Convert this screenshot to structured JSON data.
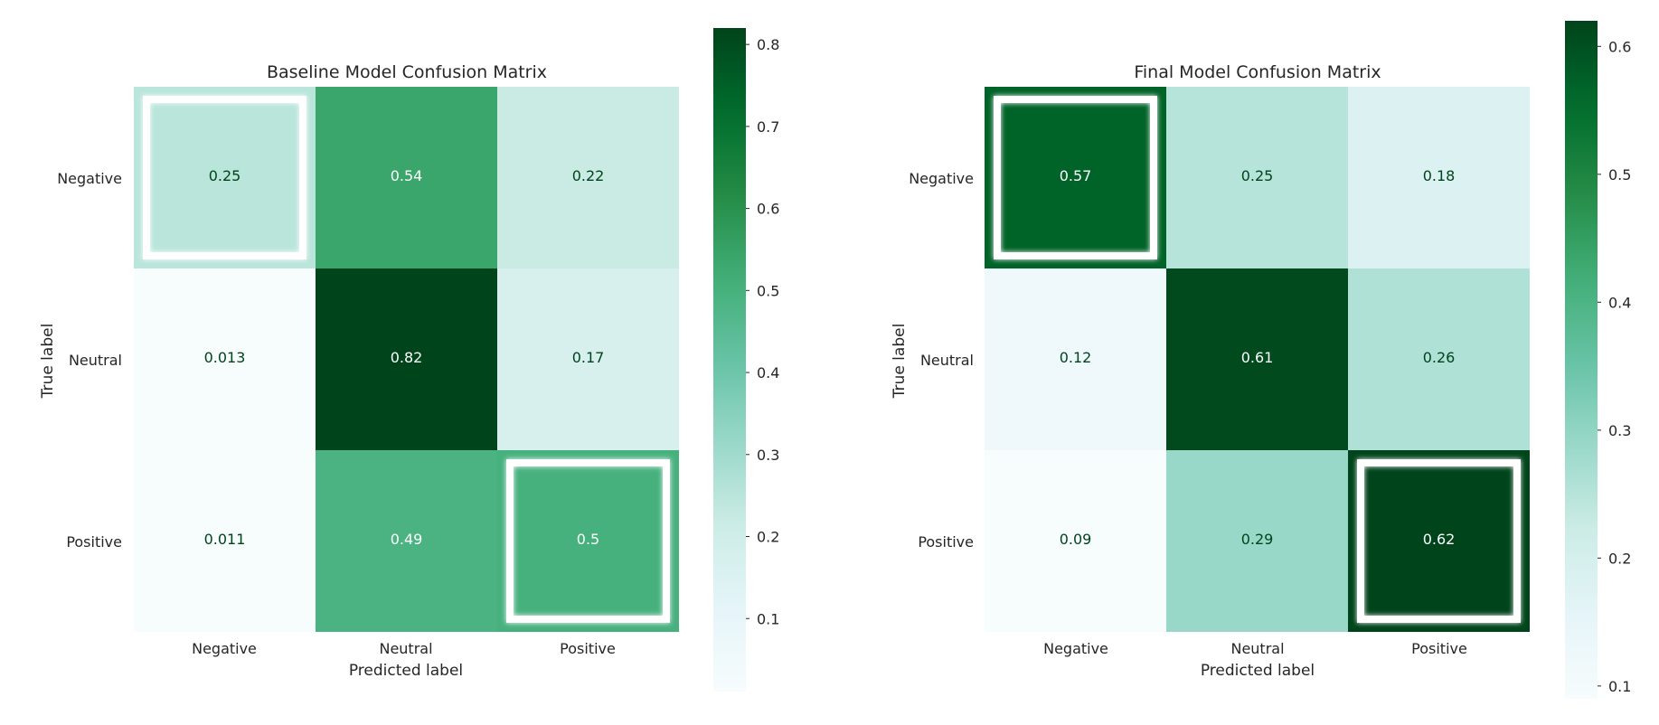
{
  "chart_data": [
    {
      "type": "heatmap",
      "title": "Baseline Model Confusion Matrix",
      "xlabel": "Predicted label",
      "ylabel": "True label",
      "x_categories": [
        "Negative",
        "Neutral",
        "Positive"
      ],
      "y_categories": [
        "Negative",
        "Neutral",
        "Positive"
      ],
      "values": [
        [
          0.25,
          0.54,
          0.22
        ],
        [
          0.013,
          0.82,
          0.17
        ],
        [
          0.011,
          0.49,
          0.5
        ]
      ],
      "value_labels": [
        [
          "0.25",
          "0.54",
          "0.22"
        ],
        [
          "0.013",
          "0.82",
          "0.17"
        ],
        [
          "0.011",
          "0.49",
          "0.5"
        ]
      ],
      "highlighted_cells": [
        [
          0,
          0
        ],
        [
          2,
          2
        ]
      ],
      "colormap": "Greens (BuGn)",
      "colorbar": {
        "min": 0.011,
        "max": 0.82,
        "ticks": [
          0.1,
          0.2,
          0.3,
          0.4,
          0.5,
          0.6,
          0.7,
          0.8
        ],
        "tick_labels": [
          "0.1",
          "0.2",
          "0.3",
          "0.4",
          "0.5",
          "0.6",
          "0.7",
          "0.8"
        ]
      },
      "grid": false
    },
    {
      "type": "heatmap",
      "title": "Final Model Confusion Matrix",
      "xlabel": "Predicted label",
      "ylabel": "True label",
      "x_categories": [
        "Negative",
        "Neutral",
        "Positive"
      ],
      "y_categories": [
        "Negative",
        "Neutral",
        "Positive"
      ],
      "values": [
        [
          0.57,
          0.25,
          0.18
        ],
        [
          0.12,
          0.61,
          0.26
        ],
        [
          0.09,
          0.29,
          0.62
        ]
      ],
      "value_labels": [
        [
          "0.57",
          "0.25",
          "0.18"
        ],
        [
          "0.12",
          "0.61",
          "0.26"
        ],
        [
          "0.09",
          "0.29",
          "0.62"
        ]
      ],
      "highlighted_cells": [
        [
          0,
          0
        ],
        [
          2,
          2
        ]
      ],
      "colormap": "Greens (BuGn)",
      "colorbar": {
        "min": 0.09,
        "max": 0.62,
        "ticks": [
          0.1,
          0.2,
          0.3,
          0.4,
          0.5,
          0.6
        ],
        "tick_labels": [
          "0.1",
          "0.2",
          "0.3",
          "0.4",
          "0.5",
          "0.6"
        ]
      },
      "grid": false
    }
  ],
  "colors": {
    "colormap_stops": [
      "#f7fcfd",
      "#e5f5f9",
      "#ccece6",
      "#99d8c9",
      "#66c2a4",
      "#41ae76",
      "#238b45",
      "#006d2c",
      "#00441b"
    ],
    "text_dark": "#00441b",
    "text_light": "#ffffff",
    "label_text": "#262626",
    "highlight_frame": "#ffffff"
  }
}
